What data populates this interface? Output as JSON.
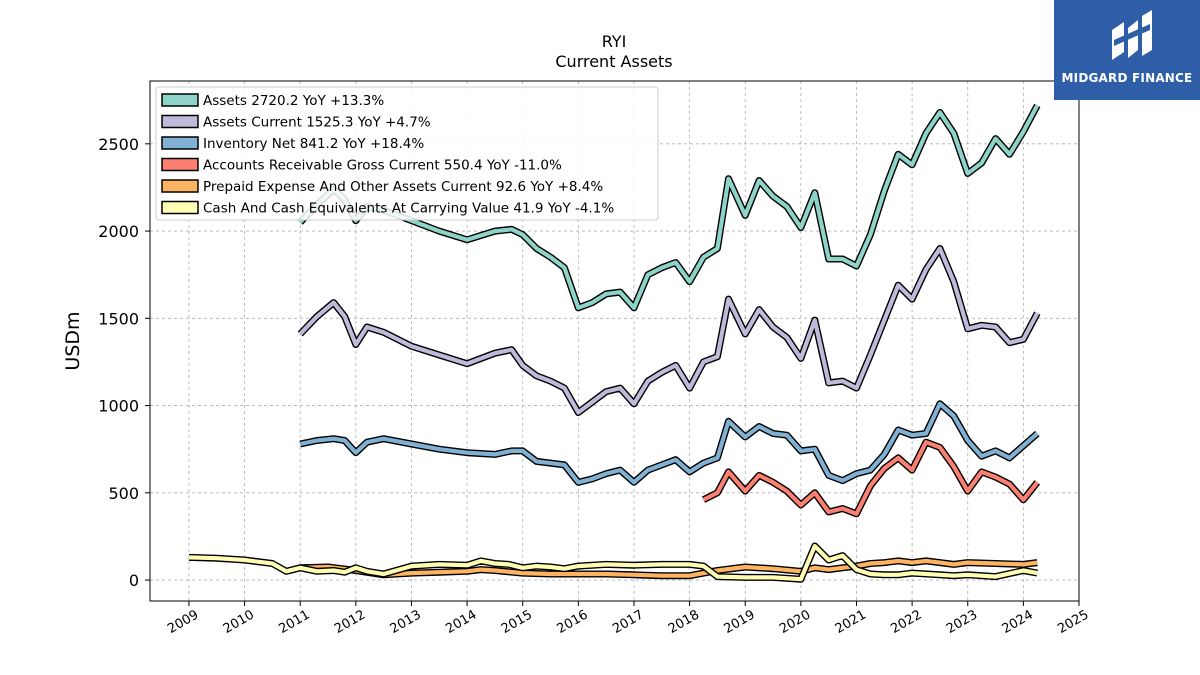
{
  "chart_data": {
    "type": "line",
    "title": "RYI",
    "subtitle": "Current  Assets",
    "xlabel": "",
    "ylabel": "USDm",
    "xlim": [
      2008.3,
      2025.0
    ],
    "ylim": [
      -120,
      2860
    ],
    "x_ticks": [
      "2009",
      "2010",
      "2011",
      "2012",
      "2013",
      "2014",
      "2015",
      "2016",
      "2017",
      "2018",
      "2019",
      "2020",
      "2021",
      "2022",
      "2023",
      "2024",
      "2025"
    ],
    "y_ticks": [
      0,
      500,
      1000,
      1500,
      2000,
      2500
    ],
    "grid": true,
    "legend_position": "top-left",
    "series": [
      {
        "name": "Assets",
        "legend": "Assets  2720.2 YoY +13.3%",
        "color": "#8dd3c7",
        "points": [
          [
            2011.0,
            2050
          ],
          [
            2011.3,
            2150
          ],
          [
            2011.6,
            2240
          ],
          [
            2011.8,
            2180
          ],
          [
            2012.0,
            2060
          ],
          [
            2012.2,
            2140
          ],
          [
            2012.5,
            2120
          ],
          [
            2013.0,
            2060
          ],
          [
            2013.5,
            2000
          ],
          [
            2014.0,
            1950
          ],
          [
            2014.5,
            2000
          ],
          [
            2014.8,
            2010
          ],
          [
            2015.0,
            1980
          ],
          [
            2015.25,
            1900
          ],
          [
            2015.5,
            1850
          ],
          [
            2015.75,
            1790
          ],
          [
            2016.0,
            1560
          ],
          [
            2016.25,
            1590
          ],
          [
            2016.5,
            1640
          ],
          [
            2016.75,
            1650
          ],
          [
            2017.0,
            1560
          ],
          [
            2017.25,
            1750
          ],
          [
            2017.5,
            1790
          ],
          [
            2017.75,
            1820
          ],
          [
            2018.0,
            1710
          ],
          [
            2018.25,
            1850
          ],
          [
            2018.5,
            1900
          ],
          [
            2018.7,
            2300
          ],
          [
            2019.0,
            2090
          ],
          [
            2019.25,
            2290
          ],
          [
            2019.5,
            2200
          ],
          [
            2019.75,
            2140
          ],
          [
            2020.0,
            2020
          ],
          [
            2020.25,
            2220
          ],
          [
            2020.5,
            1840
          ],
          [
            2020.75,
            1840
          ],
          [
            2021.0,
            1800
          ],
          [
            2021.25,
            1980
          ],
          [
            2021.5,
            2230
          ],
          [
            2021.75,
            2440
          ],
          [
            2022.0,
            2380
          ],
          [
            2022.25,
            2560
          ],
          [
            2022.5,
            2680
          ],
          [
            2022.75,
            2560
          ],
          [
            2023.0,
            2330
          ],
          [
            2023.25,
            2390
          ],
          [
            2023.5,
            2530
          ],
          [
            2023.75,
            2440
          ],
          [
            2024.0,
            2570
          ],
          [
            2024.25,
            2720
          ]
        ]
      },
      {
        "name": "Assets Current",
        "legend": "Assets Current  1525.3 YoY +4.7%",
        "color": "#bebada",
        "points": [
          [
            2011.0,
            1410
          ],
          [
            2011.3,
            1510
          ],
          [
            2011.6,
            1590
          ],
          [
            2011.8,
            1510
          ],
          [
            2012.0,
            1350
          ],
          [
            2012.2,
            1450
          ],
          [
            2012.5,
            1420
          ],
          [
            2013.0,
            1340
          ],
          [
            2013.5,
            1290
          ],
          [
            2014.0,
            1240
          ],
          [
            2014.5,
            1300
          ],
          [
            2014.8,
            1320
          ],
          [
            2015.0,
            1230
          ],
          [
            2015.25,
            1170
          ],
          [
            2015.5,
            1140
          ],
          [
            2015.75,
            1100
          ],
          [
            2016.0,
            960
          ],
          [
            2016.25,
            1020
          ],
          [
            2016.5,
            1080
          ],
          [
            2016.75,
            1100
          ],
          [
            2017.0,
            1010
          ],
          [
            2017.25,
            1140
          ],
          [
            2017.5,
            1190
          ],
          [
            2017.75,
            1230
          ],
          [
            2018.0,
            1100
          ],
          [
            2018.25,
            1250
          ],
          [
            2018.5,
            1280
          ],
          [
            2018.7,
            1610
          ],
          [
            2019.0,
            1410
          ],
          [
            2019.25,
            1550
          ],
          [
            2019.5,
            1450
          ],
          [
            2019.75,
            1390
          ],
          [
            2020.0,
            1270
          ],
          [
            2020.25,
            1490
          ],
          [
            2020.5,
            1130
          ],
          [
            2020.75,
            1140
          ],
          [
            2021.0,
            1100
          ],
          [
            2021.25,
            1290
          ],
          [
            2021.5,
            1490
          ],
          [
            2021.75,
            1690
          ],
          [
            2022.0,
            1610
          ],
          [
            2022.25,
            1780
          ],
          [
            2022.5,
            1900
          ],
          [
            2022.75,
            1710
          ],
          [
            2023.0,
            1440
          ],
          [
            2023.25,
            1460
          ],
          [
            2023.5,
            1450
          ],
          [
            2023.75,
            1360
          ],
          [
            2024.0,
            1380
          ],
          [
            2024.25,
            1530
          ]
        ]
      },
      {
        "name": "Inventory Net",
        "legend": "Inventory Net  841.2 YoY +18.4%",
        "color": "#80b1d3",
        "points": [
          [
            2011.0,
            780
          ],
          [
            2011.3,
            800
          ],
          [
            2011.6,
            810
          ],
          [
            2011.8,
            800
          ],
          [
            2012.0,
            730
          ],
          [
            2012.2,
            790
          ],
          [
            2012.5,
            810
          ],
          [
            2013.0,
            780
          ],
          [
            2013.5,
            750
          ],
          [
            2014.0,
            730
          ],
          [
            2014.5,
            720
          ],
          [
            2014.8,
            740
          ],
          [
            2015.0,
            740
          ],
          [
            2015.25,
            680
          ],
          [
            2015.5,
            670
          ],
          [
            2015.75,
            660
          ],
          [
            2016.0,
            560
          ],
          [
            2016.25,
            580
          ],
          [
            2016.5,
            610
          ],
          [
            2016.75,
            630
          ],
          [
            2017.0,
            560
          ],
          [
            2017.25,
            630
          ],
          [
            2017.5,
            660
          ],
          [
            2017.75,
            690
          ],
          [
            2018.0,
            620
          ],
          [
            2018.25,
            670
          ],
          [
            2018.5,
            700
          ],
          [
            2018.7,
            910
          ],
          [
            2019.0,
            820
          ],
          [
            2019.25,
            880
          ],
          [
            2019.5,
            840
          ],
          [
            2019.75,
            830
          ],
          [
            2020.0,
            740
          ],
          [
            2020.25,
            750
          ],
          [
            2020.5,
            600
          ],
          [
            2020.75,
            570
          ],
          [
            2021.0,
            610
          ],
          [
            2021.25,
            630
          ],
          [
            2021.5,
            720
          ],
          [
            2021.75,
            860
          ],
          [
            2022.0,
            830
          ],
          [
            2022.25,
            840
          ],
          [
            2022.5,
            1010
          ],
          [
            2022.75,
            940
          ],
          [
            2023.0,
            800
          ],
          [
            2023.25,
            710
          ],
          [
            2023.5,
            740
          ],
          [
            2023.75,
            700
          ],
          [
            2024.0,
            770
          ],
          [
            2024.25,
            840
          ]
        ]
      },
      {
        "name": "Accounts Receivable Gross Current",
        "legend": "Accounts Receivable Gross Current  550.4 YoY -11.0%",
        "color": "#fb8072",
        "points": [
          [
            2018.25,
            460
          ],
          [
            2018.5,
            500
          ],
          [
            2018.7,
            620
          ],
          [
            2019.0,
            510
          ],
          [
            2019.25,
            600
          ],
          [
            2019.5,
            560
          ],
          [
            2019.75,
            510
          ],
          [
            2020.0,
            430
          ],
          [
            2020.25,
            500
          ],
          [
            2020.5,
            390
          ],
          [
            2020.75,
            410
          ],
          [
            2021.0,
            380
          ],
          [
            2021.25,
            540
          ],
          [
            2021.5,
            640
          ],
          [
            2021.75,
            700
          ],
          [
            2022.0,
            630
          ],
          [
            2022.25,
            790
          ],
          [
            2022.5,
            760
          ],
          [
            2022.75,
            650
          ],
          [
            2023.0,
            510
          ],
          [
            2023.25,
            620
          ],
          [
            2023.5,
            590
          ],
          [
            2023.75,
            550
          ],
          [
            2024.0,
            460
          ],
          [
            2024.25,
            560
          ]
        ]
      },
      {
        "name": "Prepaid Expense And Other Assets Current",
        "legend": "Prepaid Expense And Other Assets Current  92.6 YoY +8.4%",
        "color": "#fdb462",
        "points": [
          [
            2011.0,
            70
          ],
          [
            2011.5,
            75
          ],
          [
            2012.0,
            55
          ],
          [
            2012.5,
            30
          ],
          [
            2013.0,
            40
          ],
          [
            2013.5,
            45
          ],
          [
            2014.0,
            50
          ],
          [
            2014.25,
            60
          ],
          [
            2014.5,
            55
          ],
          [
            2015.0,
            40
          ],
          [
            2015.5,
            35
          ],
          [
            2016.0,
            35
          ],
          [
            2016.5,
            35
          ],
          [
            2017.0,
            30
          ],
          [
            2017.5,
            25
          ],
          [
            2018.0,
            25
          ],
          [
            2018.5,
            55
          ],
          [
            2019.0,
            75
          ],
          [
            2019.5,
            65
          ],
          [
            2020.0,
            50
          ],
          [
            2020.25,
            70
          ],
          [
            2020.5,
            60
          ],
          [
            2020.75,
            70
          ],
          [
            2021.0,
            80
          ],
          [
            2021.25,
            95
          ],
          [
            2021.5,
            100
          ],
          [
            2021.75,
            110
          ],
          [
            2022.0,
            100
          ],
          [
            2022.25,
            110
          ],
          [
            2022.5,
            100
          ],
          [
            2022.75,
            90
          ],
          [
            2023.0,
            100
          ],
          [
            2023.5,
            95
          ],
          [
            2024.0,
            90
          ],
          [
            2024.25,
            100
          ]
        ]
      },
      {
        "name": "Cash And Cash Equivalents At Carrying Value",
        "legend": "Cash And Cash Equivalents At Carrying Value  41.9 YoY -4.1%",
        "color": "#ffffb3",
        "points": [
          [
            2009.0,
            130
          ],
          [
            2009.5,
            125
          ],
          [
            2010.0,
            115
          ],
          [
            2010.5,
            95
          ],
          [
            2010.75,
            50
          ],
          [
            2011.0,
            70
          ],
          [
            2011.3,
            50
          ],
          [
            2011.6,
            55
          ],
          [
            2011.8,
            45
          ],
          [
            2012.0,
            70
          ],
          [
            2012.2,
            50
          ],
          [
            2012.5,
            35
          ],
          [
            2013.0,
            80
          ],
          [
            2013.5,
            90
          ],
          [
            2014.0,
            85
          ],
          [
            2014.25,
            110
          ],
          [
            2014.5,
            95
          ],
          [
            2014.75,
            90
          ],
          [
            2015.0,
            70
          ],
          [
            2015.25,
            80
          ],
          [
            2015.5,
            75
          ],
          [
            2015.75,
            65
          ],
          [
            2016.0,
            80
          ],
          [
            2016.5,
            90
          ],
          [
            2017.0,
            85
          ],
          [
            2017.5,
            90
          ],
          [
            2018.0,
            90
          ],
          [
            2018.25,
            80
          ],
          [
            2018.5,
            20
          ],
          [
            2019.0,
            15
          ],
          [
            2019.5,
            15
          ],
          [
            2020.0,
            5
          ],
          [
            2020.25,
            195
          ],
          [
            2020.5,
            115
          ],
          [
            2020.75,
            140
          ],
          [
            2021.0,
            60
          ],
          [
            2021.25,
            35
          ],
          [
            2021.5,
            30
          ],
          [
            2021.75,
            30
          ],
          [
            2022.0,
            40
          ],
          [
            2022.5,
            30
          ],
          [
            2022.75,
            25
          ],
          [
            2023.0,
            30
          ],
          [
            2023.5,
            20
          ],
          [
            2024.0,
            55
          ],
          [
            2024.25,
            40
          ]
        ]
      }
    ]
  },
  "logo": {
    "text": "MIDGARD FINANCE",
    "color": "#2f5ea8"
  }
}
